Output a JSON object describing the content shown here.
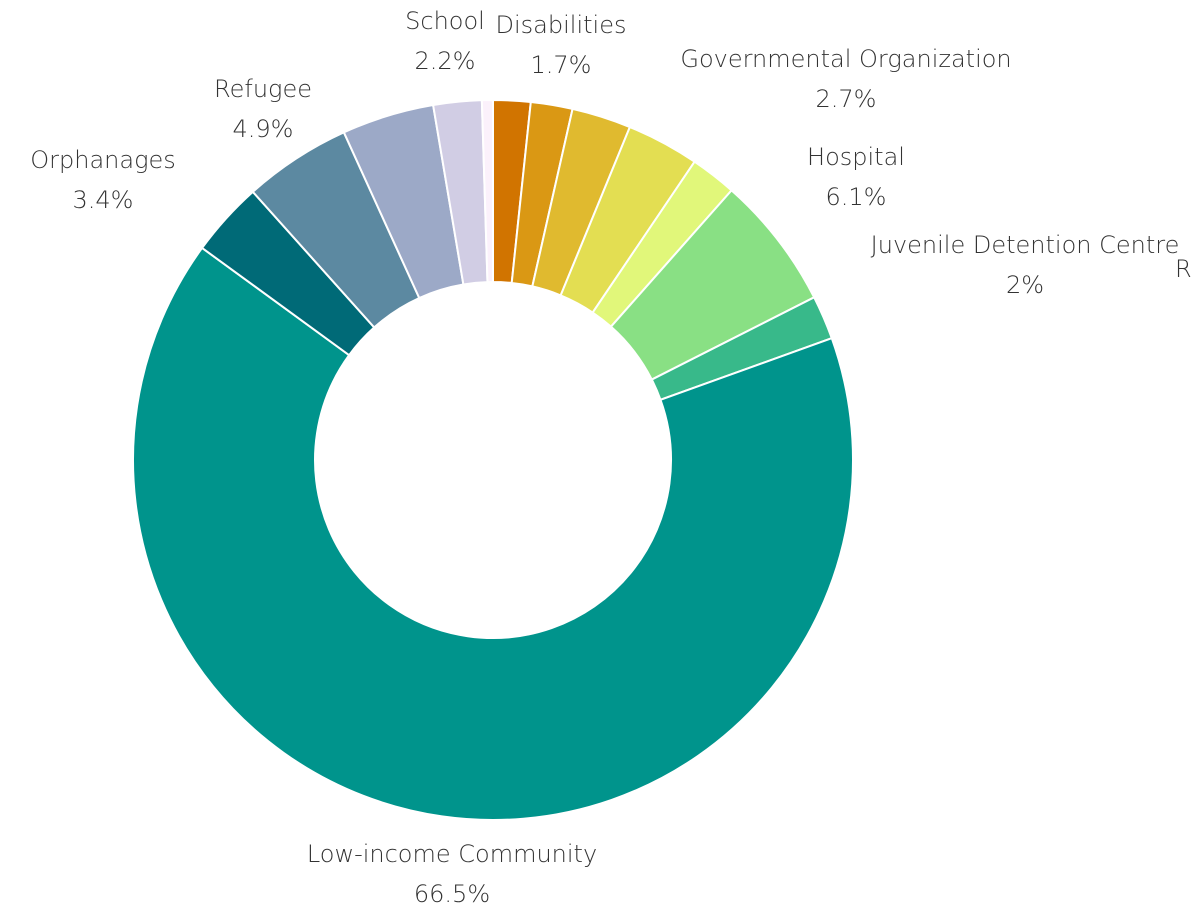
{
  "chart_data": {
    "type": "pie",
    "variant": "donut",
    "legend": "none",
    "slices": [
      {
        "label": "Disabilities",
        "value": 1.7,
        "value_text": "1.7%",
        "color": "#D17400"
      },
      {
        "label": "",
        "value": 1.9,
        "value_text": "",
        "color": "#DA9814"
      },
      {
        "label": "Governmental Organization",
        "value": 2.7,
        "value_text": "2.7%",
        "color": "#E0BA2F"
      },
      {
        "label": "",
        "value": 3.3,
        "value_text": "",
        "color": "#E3DE52"
      },
      {
        "label": "",
        "value": 2.1,
        "value_text": "",
        "color": "#E1F77A"
      },
      {
        "label": "Hospital",
        "value": 6.1,
        "value_text": "6.1%",
        "color": "#89E084"
      },
      {
        "label": "Juvenile Detention Centre",
        "value": 2,
        "value_text": "2%",
        "color": "#38B98A"
      },
      {
        "label": "Low-income Community",
        "value": 66.5,
        "value_text": "66.5%",
        "color": "#00948C"
      },
      {
        "label": "Orphanages",
        "value": 3.4,
        "value_text": "3.4%",
        "color": "#006A77"
      },
      {
        "label": "Refugee",
        "value": 4.9,
        "value_text": "4.9%",
        "color": "#5C89A1"
      },
      {
        "label": "",
        "value": 4.2,
        "value_text": "",
        "color": "#9CA9C7"
      },
      {
        "label": "School",
        "value": 2.2,
        "value_text": "2.2%",
        "color": "#D1CDE4"
      },
      {
        "label": "",
        "value": 0.5,
        "value_text": "",
        "color": "#FBF1FB"
      }
    ],
    "clipped_labels": [
      {
        "text": "R"
      }
    ]
  }
}
